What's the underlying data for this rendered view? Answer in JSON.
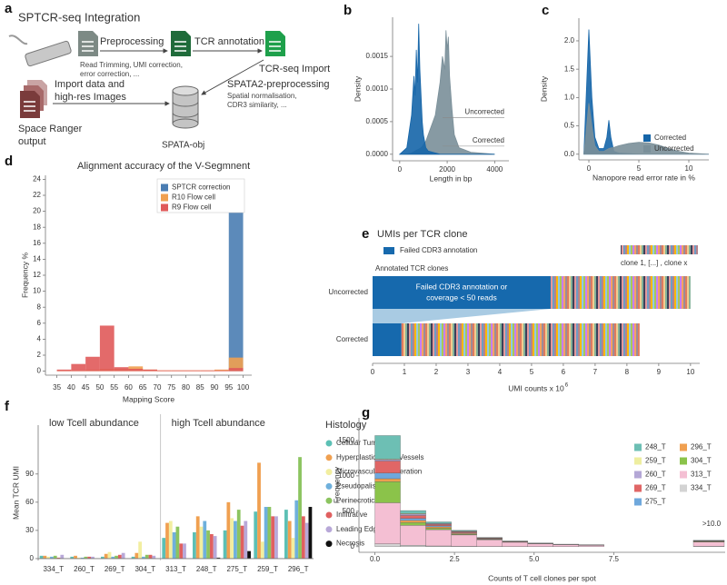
{
  "panel_labels": [
    "a",
    "b",
    "c",
    "d",
    "e",
    "f",
    "g"
  ],
  "workflow": {
    "title": "SPTCR-seq Integration",
    "preprocessing": "Preprocessing",
    "tcr_annotation": "TCR annotation",
    "preprocessing_note": [
      "Read Trimming, UMI correction,",
      "error correction, ..."
    ],
    "tcr_import": "TCR-seq Import",
    "spata2": "SPATA2-preprocessing",
    "spata2_note": [
      "Spatial normalisation,",
      "CDR3 similarity, ..."
    ],
    "import_data": [
      "Import data and",
      "high-res Images"
    ],
    "source": [
      "Space Ranger",
      "output"
    ],
    "object": "SPATA-obj"
  },
  "chart_data": [
    {
      "type": "area",
      "ylabel": "Density",
      "xlabel": "Length in bp",
      "legend": "direct",
      "x": [
        0,
        300,
        500,
        600,
        650,
        700,
        750,
        800,
        850,
        900,
        950,
        1000,
        1100,
        1200,
        1500,
        1700,
        1800,
        1900,
        1950,
        2000,
        2050,
        2100,
        2200,
        2300,
        2500,
        3000,
        4000
      ],
      "series": [
        {
          "name": "Uncorrected",
          "color": "#7a8f99",
          "values": [
            0,
            0,
            2e-05,
            4e-05,
            5e-05,
            6e-05,
            7e-05,
            8e-05,
            9e-05,
            0.0001,
            0.00012,
            0.00015,
            0.0002,
            0.0003,
            0.0006,
            0.0011,
            0.0015,
            0.0013,
            0.0019,
            0.0016,
            0.0018,
            0.0012,
            0.0007,
            0.0003,
            0.0001,
            3e-05,
            0
          ]
        },
        {
          "name": "Corrected",
          "color": "#1565a8",
          "values": [
            0,
            0.0001,
            0.0006,
            0.0012,
            0.0009,
            0.0016,
            0.0011,
            0.002,
            0.0013,
            0.0009,
            0.0005,
            0.0003,
            0.0001,
            5e-05,
            2e-05,
            0,
            0,
            0,
            0,
            0,
            0,
            0,
            0,
            0,
            0,
            0,
            0
          ]
        }
      ],
      "xlim": [
        -300,
        4600
      ],
      "ylim": [
        -0.0001,
        0.0021
      ],
      "xticks": [
        0,
        2000,
        4000
      ],
      "yticks": [
        {
          "value": 0,
          "label": "0.0000"
        },
        {
          "value": 0.0005,
          "label": "0.0005"
        },
        {
          "value": 0.001,
          "label": "0.0010"
        },
        {
          "value": 0.0015,
          "label": "0.0015"
        }
      ]
    },
    {
      "type": "area",
      "ylabel": "Density",
      "xlabel": "Nanopore read error rate in %",
      "legend": "lower right",
      "x": [
        -0.5,
        0,
        0.3,
        0.6,
        1,
        1.5,
        1.8,
        2,
        2.2,
        2.5,
        3,
        4,
        5,
        6,
        7,
        8,
        9,
        10,
        11,
        12
      ],
      "series": [
        {
          "name": "Corrected",
          "color": "#1565a8",
          "values": [
            0,
            2.2,
            1.0,
            0.3,
            0.1,
            0.1,
            0.3,
            0.6,
            0.3,
            0.05,
            0.02,
            0.01,
            0,
            0,
            0,
            0,
            0,
            0,
            0,
            0
          ]
        },
        {
          "name": "Uncorrected",
          "color": "#7a8f99",
          "values": [
            0,
            0.9,
            0.5,
            0.15,
            0.05,
            0.05,
            0.08,
            0.1,
            0.11,
            0.12,
            0.15,
            0.19,
            0.21,
            0.2,
            0.16,
            0.1,
            0.05,
            0.02,
            0.01,
            0
          ]
        }
      ],
      "xlim": [
        -1,
        12
      ],
      "ylim": [
        -0.1,
        2.4
      ],
      "xticks": [
        0,
        5,
        10
      ],
      "yticks": [
        {
          "value": 0,
          "label": "0.0"
        },
        {
          "value": 0.5,
          "label": "0.5"
        },
        {
          "value": 1,
          "label": "1.0"
        },
        {
          "value": 1.5,
          "label": "1.5"
        },
        {
          "value": 2,
          "label": "2.0"
        }
      ]
    },
    {
      "type": "histogram",
      "title": "Alignment accuracy of the V-Segmnent",
      "xlabel": "Mapping Score",
      "ylabel": "Frequency %",
      "legend": "upper right",
      "bins": [
        35,
        40,
        45,
        50,
        55,
        60,
        65,
        70,
        75,
        80,
        85,
        90,
        95,
        100
      ],
      "series": [
        {
          "name": "SPTCR correction",
          "color": "#4a7db3",
          "values": [
            0,
            0,
            0,
            0,
            0,
            0,
            0,
            0,
            0,
            0,
            0,
            0,
            23.5
          ]
        },
        {
          "name": "R10 Flow cell",
          "color": "#f0a050",
          "values": [
            0.1,
            0.1,
            0.2,
            0.3,
            0.3,
            0.6,
            0.2,
            0.1,
            0.1,
            0.1,
            0.1,
            0.2,
            1.7
          ]
        },
        {
          "name": "R9 Flow cell",
          "color": "#e05a5a",
          "values": [
            0.2,
            0.9,
            1.8,
            5.7,
            0.5,
            0.3,
            0.2,
            0.1,
            0.1,
            0.1,
            0.1,
            0.1,
            0.4
          ]
        }
      ],
      "xlim": [
        31,
        103
      ],
      "ylim": [
        -0.5,
        24.5
      ],
      "xticks": [
        35,
        40,
        45,
        50,
        55,
        60,
        65,
        70,
        75,
        80,
        85,
        90,
        95,
        100
      ],
      "yticks": [
        0,
        2,
        4,
        6,
        8,
        10,
        12,
        14,
        16,
        18,
        20,
        22,
        24
      ]
    },
    {
      "type": "stacked-hbar",
      "title": "UMIs per TCR clone",
      "categories": [
        "Uncorrected",
        "Corrected"
      ],
      "series": [
        {
          "name": "Failed CDR3 annotation",
          "color": "#1669ad",
          "values": [
            5.6,
            0.9
          ]
        },
        {
          "name": "Annotated TCR clones",
          "values": [
            4.4,
            7.5
          ]
        }
      ],
      "clone_legend": "clone 1, [...] , clone x",
      "annotation": [
        "Failed CDR3 annotation or",
        "coverage < 50 reads"
      ],
      "xlabel": "UMI counts x 10",
      "xlabel_exponent": "6",
      "xlim": [
        0,
        10.29
      ],
      "xticks": [
        0,
        1,
        2,
        3,
        4,
        5,
        6,
        7,
        8,
        9,
        10
      ]
    },
    {
      "type": "grouped-bar",
      "ylabel": "Mean TCR UMI",
      "legend_title": "Histology",
      "groups": [
        {
          "label": "low Tcell abundance",
          "categories": [
            "334_T",
            "260_T",
            "269_T",
            "304_T"
          ]
        },
        {
          "label": "high Tcell abundance",
          "categories": [
            "313_T",
            "248_T",
            "275_T",
            "259_T",
            "296_T"
          ]
        }
      ],
      "series": [
        {
          "name": "Cellular Tumor",
          "color": "#5cc0b5",
          "values": [
            3,
            2,
            2,
            2,
            22,
            28,
            30,
            50,
            52
          ]
        },
        {
          "name": "Hyperplastic Blood Vessels",
          "color": "#f0a050",
          "values": [
            3,
            3,
            5,
            6,
            38,
            45,
            60,
            102,
            40
          ]
        },
        {
          "name": "Microvascular Proliferation",
          "color": "#f2eea0",
          "values": [
            2,
            1,
            7,
            18,
            40,
            34,
            43,
            18,
            22
          ]
        },
        {
          "name": "Pseudopalisading",
          "color": "#6fb0dc",
          "values": [
            2,
            1,
            2,
            2,
            28,
            40,
            40,
            55,
            62
          ]
        },
        {
          "name": "Perinecrotic",
          "color": "#8cc460",
          "values": [
            3,
            2,
            3,
            4,
            34,
            30,
            52,
            55,
            108
          ]
        },
        {
          "name": "Infiltrative",
          "color": "#e06060",
          "values": [
            1,
            2,
            4,
            4,
            16,
            26,
            35,
            45,
            45
          ]
        },
        {
          "name": "Leading Edge",
          "color": "#b8a8d8",
          "values": [
            4,
            2,
            6,
            3,
            16,
            24,
            40,
            45,
            38
          ]
        },
        {
          "name": "Necrosis",
          "color": "#111111",
          "values": [
            0,
            0,
            0,
            0,
            0,
            1,
            8,
            0,
            55
          ]
        }
      ],
      "ylim": [
        -2,
        142
      ],
      "yticks": [
        0,
        30,
        60,
        90
      ]
    },
    {
      "type": "stacked-histogram",
      "xlabel": "Counts of T cell clones per spot",
      "ylabel": "Frequency",
      "legend": "upper right",
      "bins": [
        0,
        0.8,
        1.6,
        2.4,
        3.2,
        4.0,
        4.8,
        5.6,
        6.4,
        7.2
      ],
      "overflow_label": ">10.0",
      "series": [
        {
          "name": "248_T",
          "color": "#6dbfb4",
          "values": [
            330,
            40,
            20,
            10,
            5,
            2,
            1,
            1,
            1
          ],
          "overflow": 5
        },
        {
          "name": "259_T",
          "color": "#eeeea0",
          "values": [
            10,
            10,
            5,
            5,
            2,
            1,
            0,
            0,
            0
          ],
          "overflow": 1
        },
        {
          "name": "260_T",
          "color": "#b4a7d6",
          "values": [
            20,
            20,
            10,
            5,
            3,
            2,
            1,
            1,
            0
          ],
          "overflow": 2
        },
        {
          "name": "269_T",
          "color": "#e06666",
          "values": [
            170,
            40,
            20,
            15,
            7,
            4,
            2,
            1,
            1
          ],
          "overflow": 4
        },
        {
          "name": "275_T",
          "color": "#6fa8dc",
          "values": [
            80,
            30,
            15,
            10,
            5,
            3,
            2,
            1,
            1
          ],
          "overflow": 3
        },
        {
          "name": "296_T",
          "color": "#f0a050",
          "values": [
            40,
            30,
            20,
            10,
            5,
            3,
            1,
            1,
            1
          ],
          "overflow": 5
        },
        {
          "name": "304_T",
          "color": "#8bc34a",
          "values": [
            300,
            40,
            20,
            10,
            5,
            3,
            2,
            1,
            1
          ],
          "overflow": 5
        },
        {
          "name": "313_T",
          "color": "#f4bfd3",
          "values": [
            580,
            280,
            230,
            160,
            95,
            60,
            40,
            28,
            20
          ],
          "overflow": 60
        },
        {
          "name": "334_T",
          "color": "#d3d3d3",
          "values": [
            40,
            20,
            10,
            5,
            3,
            2,
            1,
            1,
            0
          ],
          "overflow": 5
        }
      ],
      "xlim": [
        -0.5,
        11
      ],
      "ylim": [
        -80,
        1820
      ],
      "xticks": [
        {
          "value": 0,
          "label": "0.0"
        },
        2.5,
        {
          "value": 5,
          "label": "5.0"
        },
        7.5
      ],
      "yticks": [
        0,
        500,
        1000,
        1500
      ]
    }
  ]
}
